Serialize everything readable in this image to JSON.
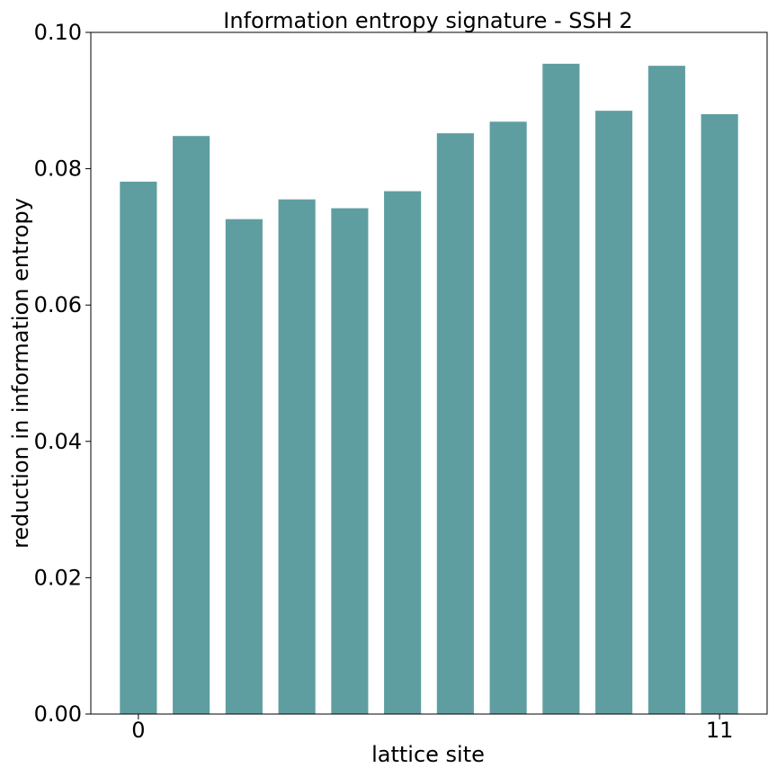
{
  "chart_data": {
    "type": "bar",
    "title": "Information entropy signature - SSH 2",
    "xlabel": "lattice site",
    "ylabel": "reduction in information entropy",
    "categories": [
      "0",
      "1",
      "2",
      "3",
      "4",
      "5",
      "6",
      "7",
      "8",
      "9",
      "10",
      "11"
    ],
    "x_tick_labels": [
      "0",
      "11"
    ],
    "values": [
      0.0781,
      0.0848,
      0.0726,
      0.0755,
      0.0742,
      0.0767,
      0.0852,
      0.0869,
      0.0954,
      0.0885,
      0.0951,
      0.088
    ],
    "ylim": [
      0,
      0.1
    ],
    "y_ticks": [
      "0.00",
      "0.02",
      "0.04",
      "0.06",
      "0.08",
      "0.10"
    ],
    "bar_color": "#5f9ea0",
    "grid": false,
    "legend": "none"
  }
}
